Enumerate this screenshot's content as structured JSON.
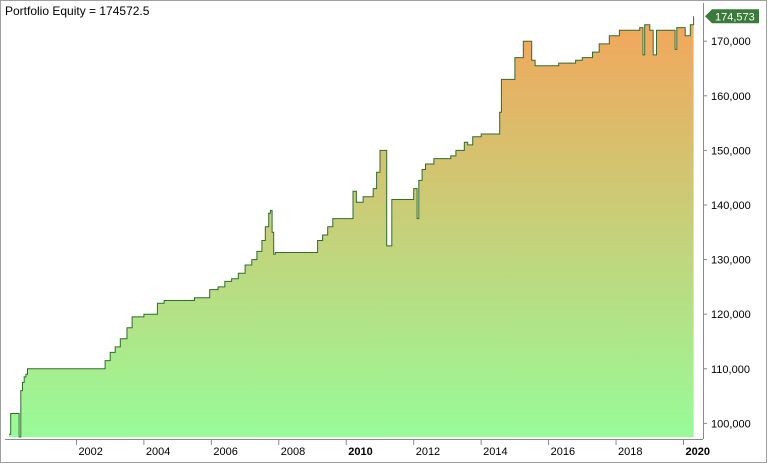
{
  "chart_data": {
    "type": "area",
    "title": "Portfolio Equity = 174572.5",
    "last_value_label": "174,573",
    "ylim": [
      97500,
      177000
    ],
    "xlim": [
      2000.0,
      2020.4
    ],
    "y_ticks": [
      {
        "value": 100000,
        "label": "100,000"
      },
      {
        "value": 110000,
        "label": "110,000"
      },
      {
        "value": 120000,
        "label": "120,000"
      },
      {
        "value": 130000,
        "label": "130,000"
      },
      {
        "value": 140000,
        "label": "140,000"
      },
      {
        "value": 150000,
        "label": "150,000"
      },
      {
        "value": 160000,
        "label": "160,000"
      },
      {
        "value": 170000,
        "label": "170,000"
      }
    ],
    "x_ticks": [
      {
        "value": 2002,
        "label": "2002",
        "bold": false
      },
      {
        "value": 2004,
        "label": "2004",
        "bold": false
      },
      {
        "value": 2006,
        "label": "2006",
        "bold": false
      },
      {
        "value": 2008,
        "label": "2008",
        "bold": false
      },
      {
        "value": 2010,
        "label": "2010",
        "bold": true
      },
      {
        "value": 2012,
        "label": "2012",
        "bold": false
      },
      {
        "value": 2014,
        "label": "2014",
        "bold": false
      },
      {
        "value": 2016,
        "label": "2016",
        "bold": false
      },
      {
        "value": 2018,
        "label": "2018",
        "bold": false
      },
      {
        "value": 2020,
        "label": "2020",
        "bold": true
      }
    ],
    "series": [
      {
        "x": [
          2000.0,
          2000.05,
          2000.25,
          2000.3,
          2000.35,
          2000.4,
          2000.45,
          2000.5,
          2000.55,
          2001.0,
          2002.5,
          2002.85,
          2003.0,
          2003.15,
          2003.3,
          2003.5,
          2003.65,
          2004.0,
          2004.4,
          2004.6,
          2004.75,
          2005.0,
          2005.5,
          2005.95,
          2006.2,
          2006.4,
          2006.6,
          2006.8,
          2007.0,
          2007.2,
          2007.35,
          2007.5,
          2007.6,
          2007.7,
          2007.75,
          2007.8,
          2007.85,
          2007.9,
          2008.0,
          2009.0,
          2009.15,
          2009.3,
          2009.45,
          2009.6,
          2010.0,
          2010.2,
          2010.3,
          2010.5,
          2010.8,
          2010.9,
          2011.0,
          2011.15,
          2011.2,
          2011.35,
          2011.7,
          2011.9,
          2012.0,
          2012.1,
          2012.15,
          2012.25,
          2012.35,
          2012.6,
          2012.8,
          2013.1,
          2013.25,
          2013.5,
          2013.6,
          2013.75,
          2014.0,
          2014.4,
          2014.55,
          2014.6,
          2014.8,
          2015.0,
          2015.25,
          2015.4,
          2015.5,
          2015.6,
          2015.9,
          2016.3,
          2016.8,
          2017.0,
          2017.3,
          2017.5,
          2017.8,
          2018.1,
          2018.25,
          2018.4,
          2018.7,
          2018.8,
          2018.85,
          2019.0,
          2019.1,
          2019.2,
          2019.7,
          2019.75,
          2019.8,
          2020.0,
          2020.05,
          2020.2,
          2020.3
        ],
        "values": [
          98000,
          101800,
          101800,
          97500,
          106000,
          107500,
          108500,
          109000,
          110000,
          110000,
          110000,
          111500,
          113000,
          114000,
          115500,
          117500,
          119500,
          120000,
          122000,
          122500,
          122500,
          122500,
          123000,
          124500,
          125000,
          126000,
          126500,
          127500,
          129000,
          130000,
          131500,
          133500,
          136000,
          138500,
          139000,
          135000,
          131000,
          131300,
          131300,
          131300,
          133500,
          134500,
          136000,
          137500,
          137500,
          142500,
          140500,
          141500,
          143000,
          146000,
          150000,
          150000,
          132500,
          141000,
          141000,
          141000,
          143000,
          137500,
          144500,
          146500,
          147500,
          148500,
          148500,
          149000,
          150000,
          151500,
          151000,
          152500,
          153000,
          153000,
          157000,
          163000,
          163000,
          167000,
          170000,
          170000,
          166500,
          165500,
          165500,
          166000,
          166500,
          167000,
          168000,
          169500,
          171000,
          172000,
          172000,
          172000,
          172500,
          167500,
          173000,
          172000,
          167500,
          172000,
          172000,
          168500,
          172500,
          172500,
          171000,
          173000,
          174572.5
        ]
      }
    ],
    "colors": {
      "fill_top": "#f4a55a",
      "fill_bottom": "#98fb98",
      "line": "#2f6e2f",
      "last_label_bg": "#3a7a3a",
      "axis": "#8a8a8a",
      "border": "#a0a0a0"
    }
  }
}
